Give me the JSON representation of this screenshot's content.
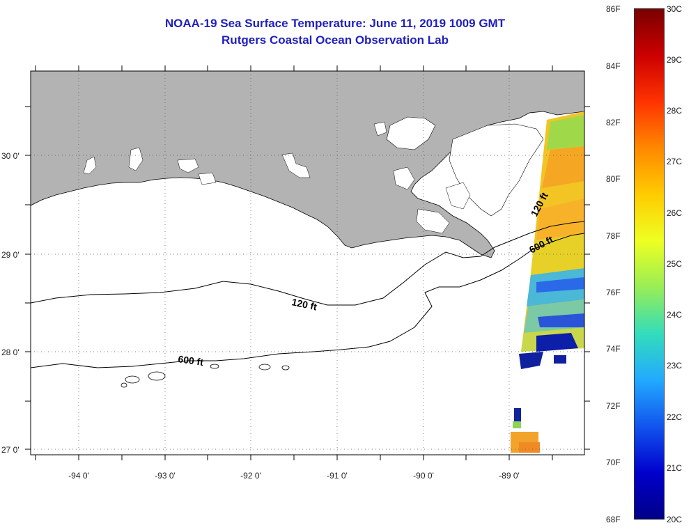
{
  "title_line1": "NOAA-19 Sea Surface Temperature:  June 11, 2019 1009 GMT",
  "title_line2": "Rutgers Coastal Ocean Observation Lab",
  "map": {
    "lon_labels": [
      "-94 0'",
      "-93 0'",
      "-92 0'",
      "-91 0'",
      "-90 0'",
      "-89 0'"
    ],
    "lat_labels": [
      "30 0'",
      "29 0'",
      "28 0'",
      "27 0'"
    ],
    "contour_labels": [
      "120 ft",
      "600 ft",
      "120 ft",
      "600 ft"
    ],
    "colors": {
      "land": "#b3b3b3",
      "sea": "#ffffff",
      "contour": "#000000"
    }
  },
  "colorbar": {
    "fahrenheit_labels": [
      "86F",
      "84F",
      "82F",
      "80F",
      "78F",
      "76F",
      "74F",
      "72F",
      "70F",
      "68F"
    ],
    "celsius_labels": [
      "30C",
      "29C",
      "28C",
      "27C",
      "26C",
      "25C",
      "24C",
      "23C",
      "22C",
      "21C",
      "20C"
    ],
    "range_c": [
      20,
      30
    ],
    "range_f": [
      68,
      86
    ],
    "gradient": [
      "#7a0000",
      "#cc0000",
      "#ff3300",
      "#ff8800",
      "#ffcc00",
      "#eeff22",
      "#99ee55",
      "#33ddbb",
      "#22aaff",
      "#1155ee",
      "#0000cc",
      "#000088"
    ]
  }
}
